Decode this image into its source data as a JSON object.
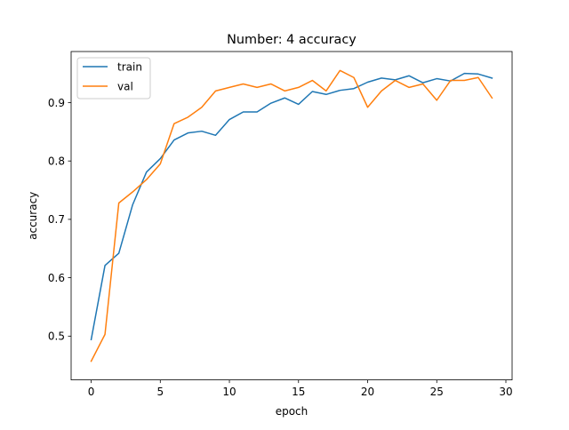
{
  "chart_data": {
    "type": "line",
    "title": "Number: 4 accuracy",
    "xlabel": "epoch",
    "ylabel": "accuracy",
    "xlim": [
      -1.45,
      30.45
    ],
    "ylim": [
      0.425,
      0.9875
    ],
    "xticks": [
      0,
      5,
      10,
      15,
      20,
      25,
      30
    ],
    "xtick_labels": [
      "0",
      "5",
      "10",
      "15",
      "20",
      "25",
      "30"
    ],
    "yticks": [
      0.5,
      0.6,
      0.7,
      0.8,
      0.9
    ],
    "ytick_labels": [
      "0.5",
      "0.6",
      "0.7",
      "0.8",
      "0.9"
    ],
    "grid": false,
    "legend_position": "top-left",
    "x": [
      0,
      1,
      2,
      3,
      4,
      5,
      6,
      7,
      8,
      9,
      10,
      11,
      12,
      13,
      14,
      15,
      16,
      17,
      18,
      19,
      20,
      21,
      22,
      23,
      24,
      25,
      26,
      27,
      28,
      29
    ],
    "series": [
      {
        "name": "train",
        "color": "#1f77b4",
        "values": [
          0.494,
          0.621,
          0.642,
          0.725,
          0.781,
          0.804,
          0.836,
          0.848,
          0.851,
          0.844,
          0.871,
          0.884,
          0.884,
          0.899,
          0.908,
          0.897,
          0.919,
          0.914,
          0.921,
          0.924,
          0.935,
          0.942,
          0.939,
          0.946,
          0.934,
          0.941,
          0.937,
          0.95,
          0.949,
          0.942
        ]
      },
      {
        "name": "val",
        "color": "#ff7f0e",
        "values": [
          0.457,
          0.503,
          0.728,
          0.747,
          0.768,
          0.795,
          0.864,
          0.875,
          0.892,
          0.92,
          0.926,
          0.932,
          0.926,
          0.932,
          0.92,
          0.926,
          0.938,
          0.92,
          0.955,
          0.943,
          0.892,
          0.92,
          0.938,
          0.926,
          0.932,
          0.904,
          0.938,
          0.938,
          0.943,
          0.908
        ]
      }
    ]
  }
}
